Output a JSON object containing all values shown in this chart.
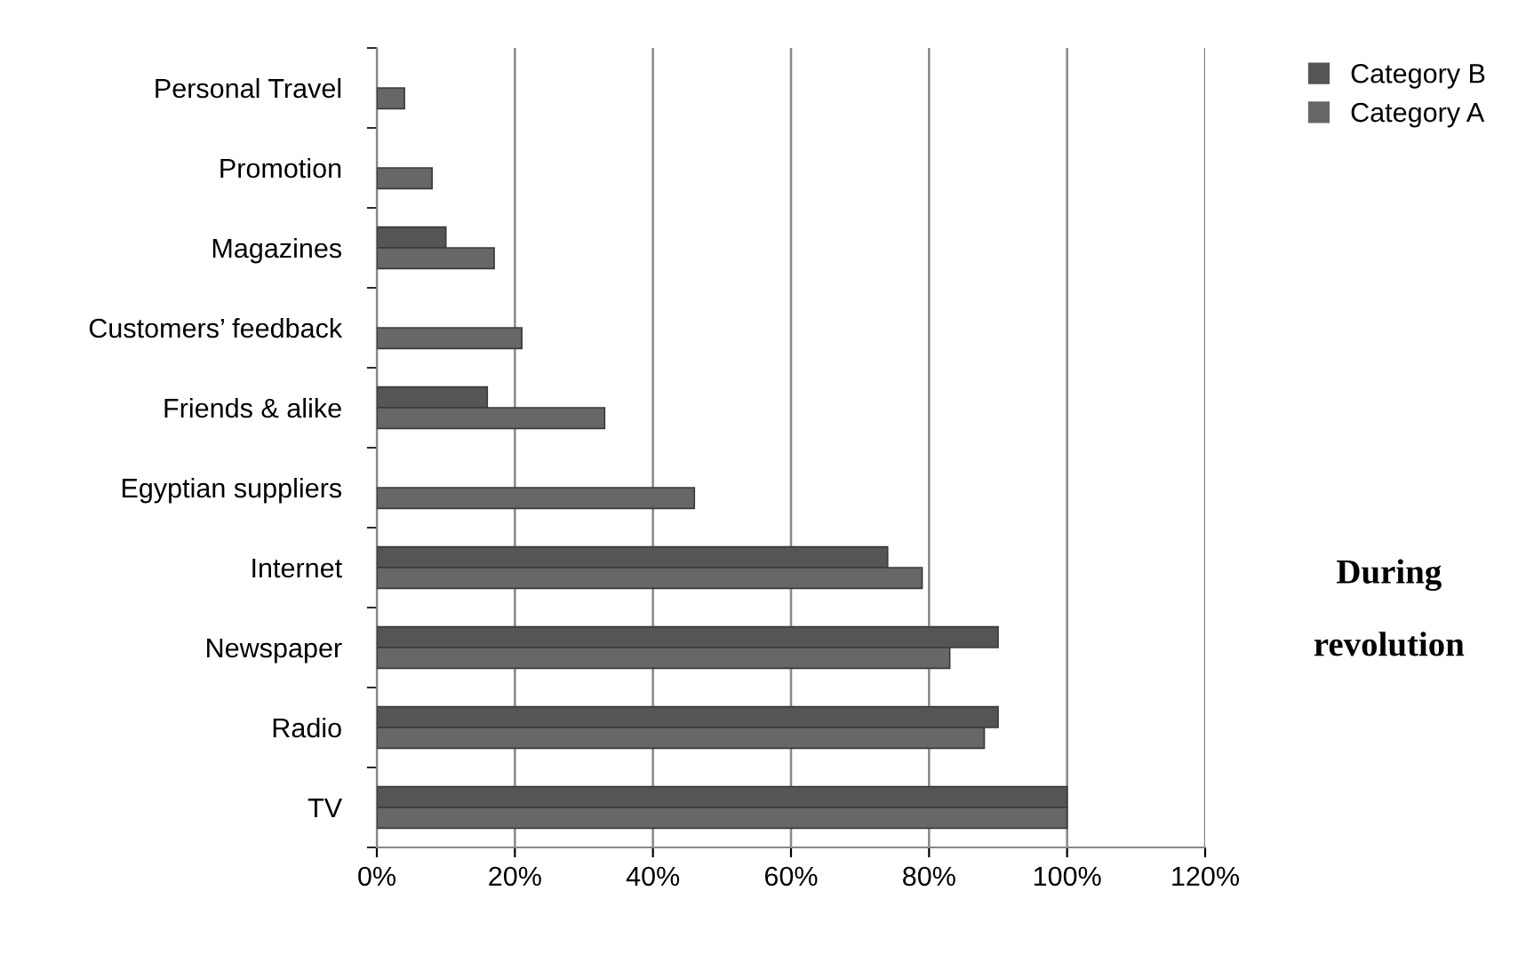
{
  "chart_data": {
    "type": "bar",
    "orientation": "horizontal",
    "categories": [
      "Personal Travel",
      "Promotion",
      "Magazines",
      "Customers’ feedback",
      "Friends & alike",
      "Egyptian suppliers",
      "Internet",
      "Newspaper",
      "Radio",
      "TV"
    ],
    "series": [
      {
        "name": "Category B",
        "color": "#555555",
        "values": [
          null,
          null,
          10,
          null,
          16,
          null,
          74,
          90,
          90,
          100
        ]
      },
      {
        "name": "Category A",
        "color": "#676767",
        "values": [
          4,
          8,
          17,
          21,
          33,
          46,
          79,
          83,
          88,
          100
        ]
      }
    ],
    "xlim": [
      0,
      120
    ],
    "xticks": [
      {
        "value": 0,
        "label": "0%"
      },
      {
        "value": 20,
        "label": "20%"
      },
      {
        "value": 40,
        "label": "40%"
      },
      {
        "value": 60,
        "label": "60%"
      },
      {
        "value": 80,
        "label": "80%"
      },
      {
        "value": 100,
        "label": "100%"
      },
      {
        "value": 120,
        "label": "120%"
      }
    ],
    "grid": "x",
    "legend": "top right",
    "annotations": [
      "During\n\nrevolution"
    ]
  }
}
